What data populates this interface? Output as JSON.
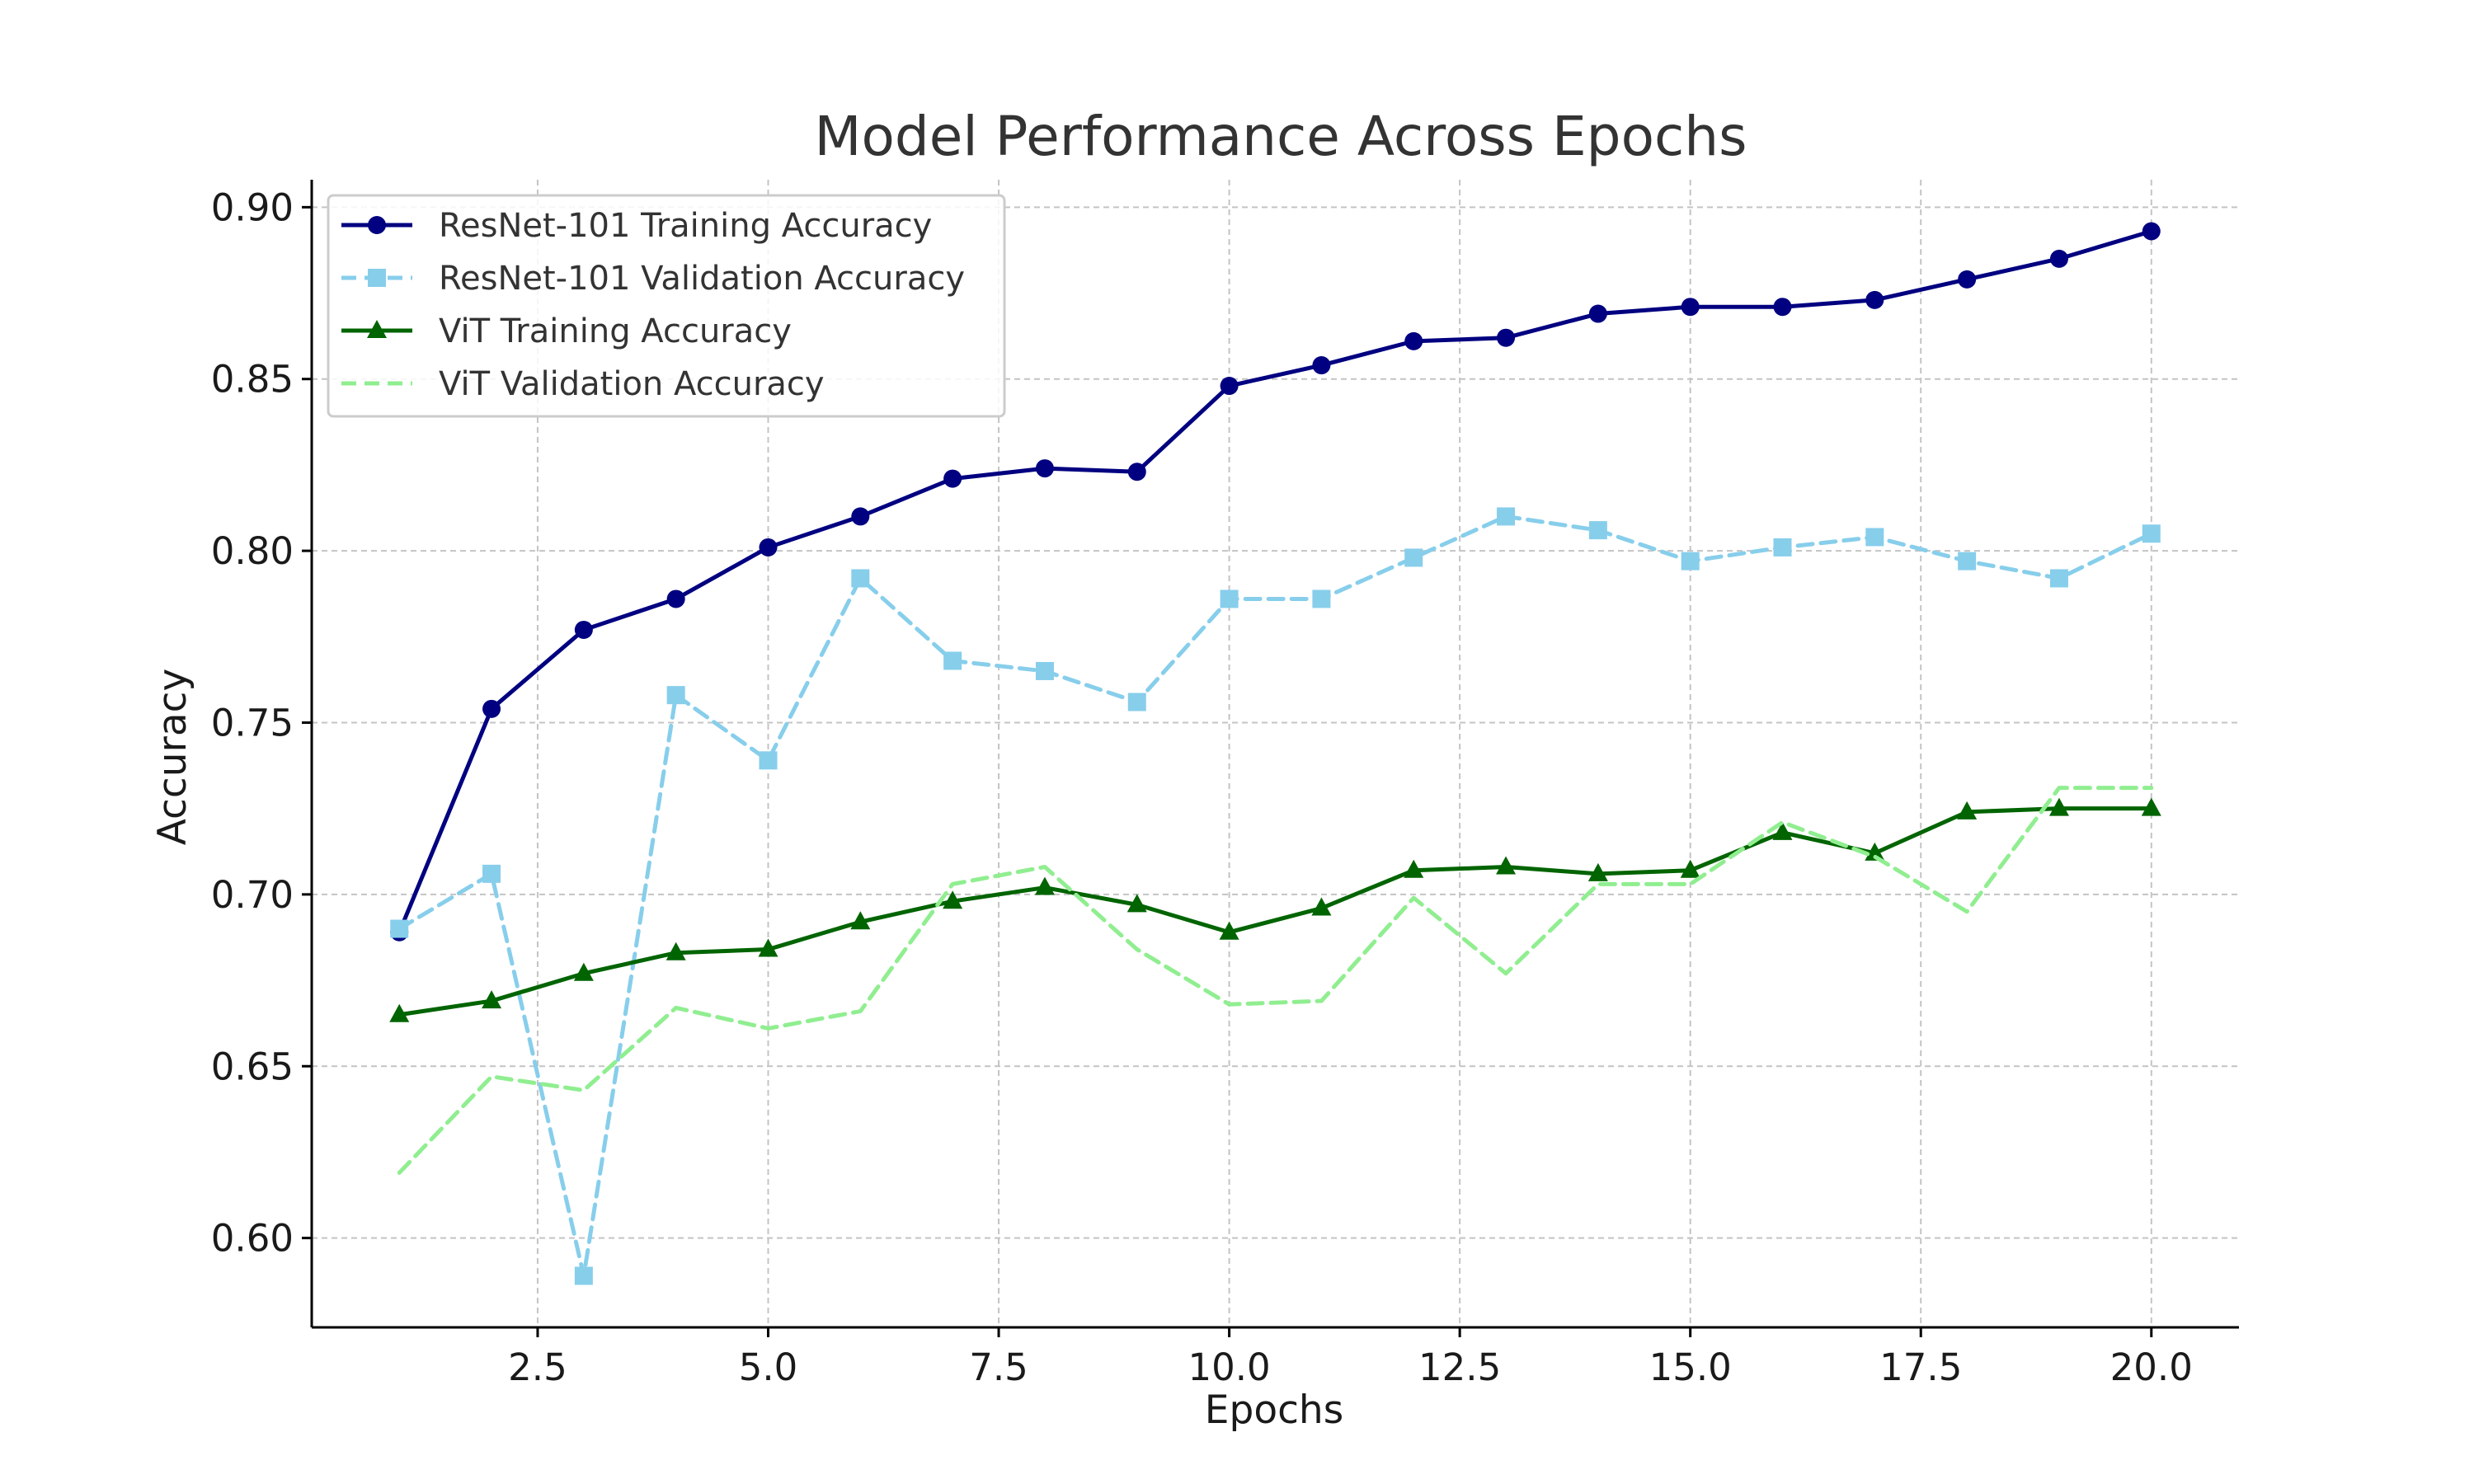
{
  "chart_data": {
    "type": "line",
    "title": "Model Performance Across Epochs",
    "xlabel": "Epochs",
    "ylabel": "Accuracy",
    "xlim": [
      0.05,
      20.95
    ],
    "ylim": [
      0.574,
      0.908
    ],
    "xticks": [
      2.5,
      5.0,
      7.5,
      10.0,
      12.5,
      15.0,
      17.5,
      20.0
    ],
    "xtick_labels": [
      "2.5",
      "5.0",
      "7.5",
      "10.0",
      "12.5",
      "15.0",
      "17.5",
      "20.0"
    ],
    "yticks": [
      0.6,
      0.65,
      0.7,
      0.75,
      0.8,
      0.85,
      0.9
    ],
    "ytick_labels": [
      "0.60",
      "0.65",
      "0.70",
      "0.75",
      "0.80",
      "0.85",
      "0.90"
    ],
    "grid": true,
    "legend_position": "top-left",
    "x": [
      1,
      2,
      3,
      4,
      5,
      6,
      7,
      8,
      9,
      10,
      11,
      12,
      13,
      14,
      15,
      16,
      17,
      18,
      19,
      20
    ],
    "series": [
      {
        "name": "ResNet-101 Training Accuracy",
        "color": "#000080",
        "line_style": "solid",
        "marker": "circle",
        "values": [
          0.689,
          0.754,
          0.777,
          0.786,
          0.801,
          0.81,
          0.821,
          0.824,
          0.823,
          0.848,
          0.854,
          0.861,
          0.862,
          0.869,
          0.871,
          0.871,
          0.873,
          0.879,
          0.885,
          0.893
        ]
      },
      {
        "name": "ResNet-101 Validation Accuracy",
        "color": "#87CEEB",
        "line_style": "dashed",
        "marker": "square",
        "values": [
          0.69,
          0.706,
          0.589,
          0.758,
          0.739,
          0.792,
          0.768,
          0.765,
          0.756,
          0.786,
          0.786,
          0.798,
          0.81,
          0.806,
          0.797,
          0.801,
          0.804,
          0.797,
          0.792,
          0.805
        ]
      },
      {
        "name": "ViT Training Accuracy",
        "color": "#006400",
        "line_style": "solid",
        "marker": "triangle",
        "values": [
          0.665,
          0.669,
          0.677,
          0.683,
          0.684,
          0.692,
          0.698,
          0.702,
          0.697,
          0.689,
          0.696,
          0.707,
          0.708,
          0.706,
          0.707,
          0.718,
          0.712,
          0.724,
          0.725,
          0.725
        ]
      },
      {
        "name": "ViT Validation Accuracy",
        "color": "#90EE90",
        "line_style": "dashed",
        "marker": "none",
        "values": [
          0.619,
          0.647,
          0.643,
          0.667,
          0.661,
          0.666,
          0.703,
          0.708,
          0.684,
          0.668,
          0.669,
          0.699,
          0.677,
          0.703,
          0.703,
          0.721,
          0.711,
          0.695,
          0.731,
          0.731
        ]
      }
    ]
  }
}
